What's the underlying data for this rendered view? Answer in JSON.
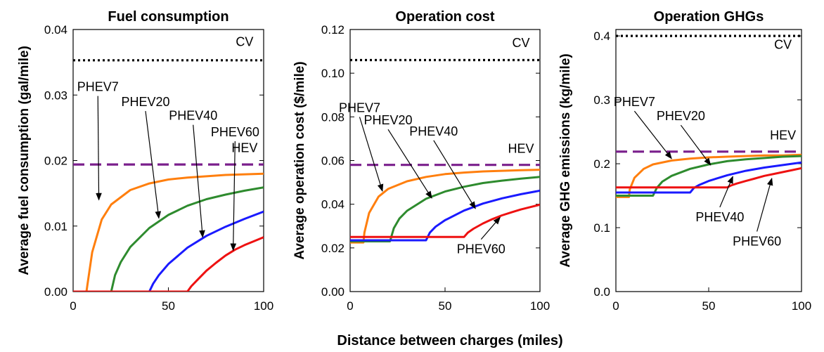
{
  "figure": {
    "xlabel": "Distance between charges (miles)"
  },
  "chart_data": [
    {
      "type": "line",
      "title": "Fuel consumption",
      "xlabel": "",
      "ylabel": "Average fuel consumption (gal/mile)",
      "xlim": [
        0,
        100
      ],
      "ylim": [
        0,
        0.04
      ],
      "xticks": [
        "0",
        "50",
        "100"
      ],
      "yticks": [
        "0.00",
        "0.01",
        "0.02",
        "0.03",
        "0.04"
      ],
      "grid": false,
      "series": [
        {
          "name": "CV",
          "color": "#000000",
          "style": "dotted",
          "x": [
            0,
            100
          ],
          "y": [
            0.0353,
            0.0353
          ]
        },
        {
          "name": "HEV",
          "color": "#7a1f8c",
          "style": "dashed",
          "x": [
            0,
            100
          ],
          "y": [
            0.0194,
            0.0194
          ]
        },
        {
          "name": "PHEV7",
          "color": "#ff7f0e",
          "style": "solid",
          "x": [
            0,
            7,
            7.5,
            10,
            15,
            20,
            30,
            40,
            50,
            60,
            70,
            80,
            90,
            100
          ],
          "y": [
            0,
            0,
            0.001,
            0.006,
            0.011,
            0.0133,
            0.0155,
            0.0165,
            0.0171,
            0.0174,
            0.0176,
            0.0178,
            0.0179,
            0.018
          ]
        },
        {
          "name": "PHEV20",
          "color": "#2e8b2e",
          "style": "solid",
          "x": [
            0,
            20,
            22,
            25,
            30,
            40,
            50,
            60,
            70,
            80,
            90,
            100
          ],
          "y": [
            0,
            0,
            0.0025,
            0.0045,
            0.0068,
            0.0097,
            0.0117,
            0.0131,
            0.0141,
            0.0148,
            0.0154,
            0.0159
          ]
        },
        {
          "name": "PHEV40",
          "color": "#1a1aff",
          "style": "solid",
          "x": [
            0,
            40,
            42,
            45,
            50,
            60,
            70,
            80,
            90,
            100
          ],
          "y": [
            0,
            0,
            0.0012,
            0.0025,
            0.0042,
            0.0067,
            0.0085,
            0.0099,
            0.0111,
            0.0122
          ]
        },
        {
          "name": "PHEV60",
          "color": "#ee1111",
          "style": "solid",
          "x": [
            0,
            60,
            62,
            65,
            70,
            75,
            80,
            85,
            90,
            95,
            100
          ],
          "y": [
            0,
            0,
            0.0008,
            0.0017,
            0.0032,
            0.0044,
            0.0055,
            0.0064,
            0.0071,
            0.0077,
            0.0083
          ]
        }
      ],
      "annotations": [
        {
          "text": "CV",
          "x": 90,
          "y": 0.0375
        },
        {
          "text": "HEV",
          "x": 90,
          "y": 0.0213
        },
        {
          "text": "PHEV7",
          "x": 13,
          "y": 0.0306,
          "arrow_to": [
            13.5,
            0.014
          ]
        },
        {
          "text": "PHEV20",
          "x": 38,
          "y": 0.0283,
          "arrow_to": [
            45,
            0.0112
          ]
        },
        {
          "text": "PHEV40",
          "x": 63,
          "y": 0.0262,
          "arrow_to": [
            68,
            0.0083
          ]
        },
        {
          "text": "PHEV60",
          "x": 85,
          "y": 0.0237,
          "arrow_to": [
            84,
            0.0063
          ]
        }
      ]
    },
    {
      "type": "line",
      "title": "Operation cost",
      "xlabel": "",
      "ylabel": "Average operation cost ($/mile)",
      "xlim": [
        0,
        100
      ],
      "ylim": [
        0,
        0.12
      ],
      "xticks": [
        "0",
        "50",
        "100"
      ],
      "yticks": [
        "0.00",
        "0.02",
        "0.04",
        "0.06",
        "0.08",
        "0.10",
        "0.12"
      ],
      "grid": false,
      "series": [
        {
          "name": "CV",
          "color": "#000000",
          "style": "dotted",
          "x": [
            0,
            100
          ],
          "y": [
            0.106,
            0.106
          ]
        },
        {
          "name": "HEV",
          "color": "#7a1f8c",
          "style": "dashed",
          "x": [
            0,
            100
          ],
          "y": [
            0.058,
            0.058
          ]
        },
        {
          "name": "PHEV7",
          "color": "#ff7f0e",
          "style": "solid",
          "x": [
            0,
            7,
            7.5,
            10,
            15,
            20,
            30,
            40,
            50,
            60,
            70,
            80,
            90,
            100
          ],
          "y": [
            0.0225,
            0.0225,
            0.027,
            0.036,
            0.0435,
            0.047,
            0.0505,
            0.0525,
            0.0538,
            0.0545,
            0.055,
            0.0553,
            0.0556,
            0.0558
          ]
        },
        {
          "name": "PHEV20",
          "color": "#2e8b2e",
          "style": "solid",
          "x": [
            0,
            21,
            23,
            26,
            30,
            40,
            50,
            60,
            70,
            80,
            90,
            100
          ],
          "y": [
            0.023,
            0.023,
            0.029,
            0.0335,
            0.037,
            0.0425,
            0.0458,
            0.048,
            0.0497,
            0.0508,
            0.0517,
            0.0525
          ]
        },
        {
          "name": "PHEV40",
          "color": "#1a1aff",
          "style": "solid",
          "x": [
            0,
            40,
            42,
            45,
            50,
            60,
            70,
            80,
            90,
            100
          ],
          "y": [
            0.0235,
            0.0235,
            0.027,
            0.0297,
            0.0327,
            0.0371,
            0.0403,
            0.0427,
            0.0446,
            0.0462
          ]
        },
        {
          "name": "PHEV60",
          "color": "#ee1111",
          "style": "solid",
          "x": [
            0,
            60,
            62,
            65,
            70,
            75,
            80,
            85,
            90,
            95,
            100
          ],
          "y": [
            0.025,
            0.025,
            0.027,
            0.0288,
            0.0312,
            0.0332,
            0.0349,
            0.0363,
            0.0376,
            0.0387,
            0.0398
          ]
        }
      ],
      "annotations": [
        {
          "text": "CV",
          "x": 90,
          "y": 0.112
        },
        {
          "text": "HEV",
          "x": 90,
          "y": 0.0635
        },
        {
          "text": "PHEV7",
          "x": 5,
          "y": 0.0822,
          "arrow_to": [
            17,
            0.046
          ]
        },
        {
          "text": "PHEV20",
          "x": 20,
          "y": 0.0765,
          "arrow_to": [
            43,
            0.0428
          ]
        },
        {
          "text": "PHEV40",
          "x": 44,
          "y": 0.0715,
          "arrow_to": [
            66,
            0.038
          ]
        },
        {
          "text": "PHEV60",
          "x": 69,
          "y": 0.0175,
          "arrow_to": [
            79,
            0.034
          ]
        }
      ]
    },
    {
      "type": "line",
      "title": "Operation GHGs",
      "xlabel": "",
      "ylabel": "Average GHG emissions (kg/mile)",
      "xlim": [
        0,
        100
      ],
      "ylim": [
        0,
        0.41
      ],
      "xticks": [
        "0",
        "50",
        "100"
      ],
      "yticks": [
        "0.0",
        "0.1",
        "0.2",
        "0.3",
        "0.4"
      ],
      "grid": false,
      "series": [
        {
          "name": "CV",
          "color": "#000000",
          "style": "dotted",
          "x": [
            0,
            100
          ],
          "y": [
            0.4,
            0.4
          ]
        },
        {
          "name": "HEV",
          "color": "#7a1f8c",
          "style": "dashed",
          "x": [
            0,
            100
          ],
          "y": [
            0.219,
            0.219
          ]
        },
        {
          "name": "PHEV7",
          "color": "#ff7f0e",
          "style": "solid",
          "x": [
            0,
            7,
            7.5,
            10,
            15,
            20,
            30,
            40,
            50,
            60,
            70,
            80,
            90,
            100
          ],
          "y": [
            0.148,
            0.148,
            0.16,
            0.178,
            0.192,
            0.199,
            0.205,
            0.208,
            0.21,
            0.211,
            0.212,
            0.213,
            0.213,
            0.214
          ]
        },
        {
          "name": "PHEV20",
          "color": "#2e8b2e",
          "style": "solid",
          "x": [
            0,
            20,
            22,
            25,
            30,
            40,
            50,
            60,
            70,
            80,
            90,
            100
          ],
          "y": [
            0.15,
            0.15,
            0.162,
            0.172,
            0.181,
            0.192,
            0.199,
            0.204,
            0.207,
            0.209,
            0.211,
            0.212
          ]
        },
        {
          "name": "PHEV40",
          "color": "#1a1aff",
          "style": "solid",
          "x": [
            0,
            40,
            42,
            45,
            50,
            60,
            70,
            80,
            90,
            100
          ],
          "y": [
            0.155,
            0.155,
            0.162,
            0.167,
            0.173,
            0.182,
            0.189,
            0.194,
            0.198,
            0.202
          ]
        },
        {
          "name": "PHEV60",
          "color": "#ee1111",
          "style": "solid",
          "x": [
            0,
            60,
            62,
            65,
            70,
            75,
            80,
            85,
            90,
            95,
            100
          ],
          "y": [
            0.163,
            0.163,
            0.166,
            0.169,
            0.173,
            0.177,
            0.181,
            0.184,
            0.187,
            0.19,
            0.193
          ]
        }
      ],
      "annotations": [
        {
          "text": "CV",
          "x": 90,
          "y": 0.38
        },
        {
          "text": "HEV",
          "x": 90,
          "y": 0.238
        },
        {
          "text": "PHEV7",
          "x": 10,
          "y": 0.29,
          "arrow_to": [
            30,
            0.208
          ]
        },
        {
          "text": "PHEV20",
          "x": 35,
          "y": 0.268,
          "arrow_to": [
            51,
            0.198
          ]
        },
        {
          "text": "PHEV40",
          "x": 56,
          "y": 0.11,
          "arrow_to": [
            63,
            0.18
          ]
        },
        {
          "text": "PHEV60",
          "x": 76,
          "y": 0.072,
          "arrow_to": [
            84,
            0.177
          ]
        }
      ]
    }
  ]
}
